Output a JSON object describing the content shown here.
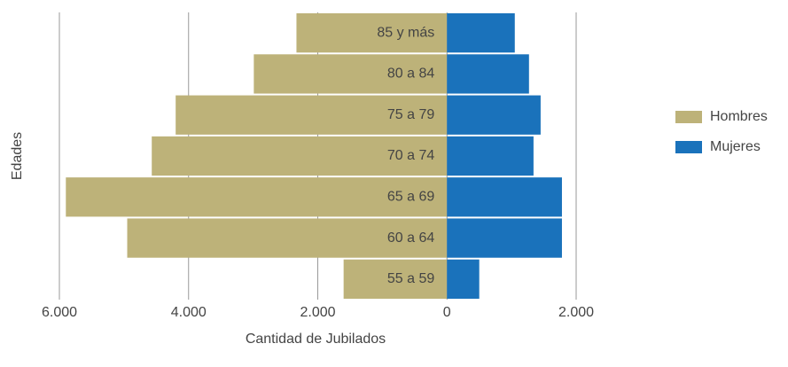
{
  "chart_data": {
    "type": "pyramid",
    "x_label": "Cantidad de Jubilados",
    "y_label": "Edades",
    "categories": [
      "85 y más",
      "80 a 84",
      "75 a 79",
      "70 a 74",
      "65 a 69",
      "60 a 64",
      "55 a 59"
    ],
    "series": [
      {
        "name": "Hombres",
        "color": "#bdb279",
        "values": [
          -2330,
          -2990,
          -4200,
          -4570,
          -5900,
          -4950,
          -1600
        ]
      },
      {
        "name": "Mujeres",
        "color": "#1a72bb",
        "values": [
          1050,
          1270,
          1450,
          1340,
          1780,
          1780,
          500
        ]
      }
    ],
    "xlim": [
      -6000,
      2000
    ],
    "xticks": [
      {
        "value": -6000,
        "label": "6.000"
      },
      {
        "value": -4000,
        "label": "4.000"
      },
      {
        "value": -2000,
        "label": "2.000"
      },
      0,
      {
        "value": 2000,
        "label": "2.000"
      }
    ],
    "grid": true,
    "legend": "right"
  }
}
